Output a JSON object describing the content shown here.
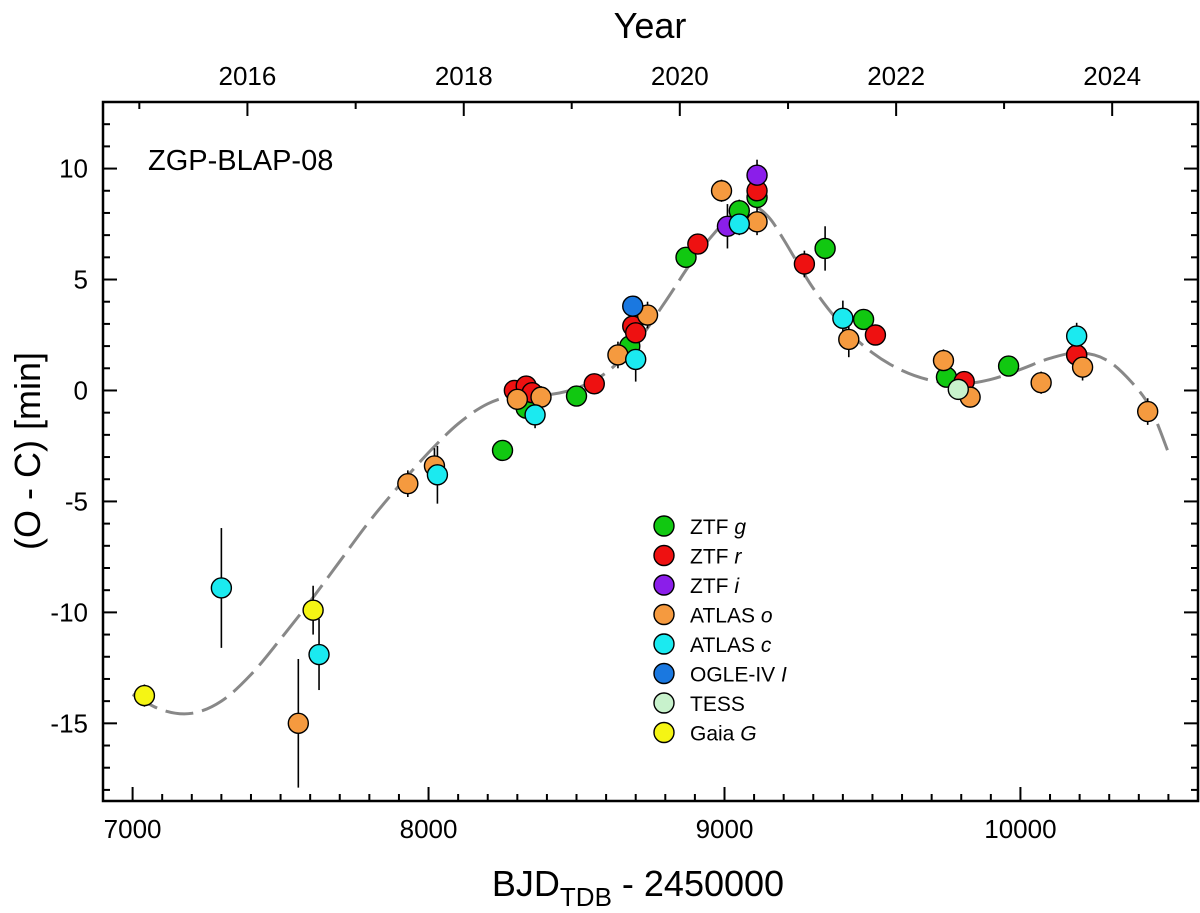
{
  "chart_data": {
    "type": "scatter",
    "annotation": "ZGP-BLAP-08",
    "xlabel": "BJD",
    "xlabel_sub": "TDB",
    "xlabel_suffix": " - 2450000",
    "ylabel": "(O - C) [min]",
    "top_axis_label": "Year",
    "xlim": [
      6900,
      10600
    ],
    "ylim": [
      -18.5,
      13
    ],
    "x_ticks": [
      7000,
      8000,
      9000,
      10000
    ],
    "y_ticks": [
      -15,
      -10,
      -5,
      0,
      5,
      10
    ],
    "year_ticks": [
      {
        "label": "2016",
        "x": 7388
      },
      {
        "label": "2018",
        "x": 8119
      },
      {
        "label": "2020",
        "x": 8849
      },
      {
        "label": "2022",
        "x": 9580
      },
      {
        "label": "2024",
        "x": 10310
      }
    ],
    "fit_curve": {
      "name": "fit",
      "color": "#888888",
      "points": [
        [
          7000,
          -13.7
        ],
        [
          7100,
          -14.4
        ],
        [
          7200,
          -14.55
        ],
        [
          7300,
          -14.0
        ],
        [
          7400,
          -12.8
        ],
        [
          7500,
          -11.2
        ],
        [
          7600,
          -9.5
        ],
        [
          7700,
          -7.7
        ],
        [
          7800,
          -5.9
        ],
        [
          7900,
          -4.3
        ],
        [
          8000,
          -2.8
        ],
        [
          8100,
          -1.5
        ],
        [
          8200,
          -0.6
        ],
        [
          8300,
          -0.2
        ],
        [
          8400,
          -0.2
        ],
        [
          8500,
          0.1
        ],
        [
          8600,
          0.8
        ],
        [
          8700,
          2.1
        ],
        [
          8800,
          4.0
        ],
        [
          8900,
          6.0
        ],
        [
          9000,
          7.6
        ],
        [
          9050,
          8.1
        ],
        [
          9100,
          8.3
        ],
        [
          9150,
          7.8
        ],
        [
          9200,
          6.8
        ],
        [
          9300,
          4.6
        ],
        [
          9400,
          2.9
        ],
        [
          9500,
          1.7
        ],
        [
          9600,
          0.9
        ],
        [
          9700,
          0.45
        ],
        [
          9800,
          0.3
        ],
        [
          9900,
          0.5
        ],
        [
          10000,
          0.95
        ],
        [
          10100,
          1.45
        ],
        [
          10200,
          1.7
        ],
        [
          10300,
          1.3
        ],
        [
          10400,
          0.0
        ],
        [
          10450,
          -1.1
        ],
        [
          10500,
          -2.8
        ]
      ]
    },
    "series": [
      {
        "name": "ZTF",
        "band": "g",
        "color": "#11c811",
        "points": [
          {
            "x": 8250,
            "y": -2.7,
            "err": 0.3
          },
          {
            "x": 8330,
            "y": -0.8,
            "err": 0.4
          },
          {
            "x": 8500,
            "y": -0.25,
            "err": 0.3
          },
          {
            "x": 8680,
            "y": 2.0,
            "err": 0.6
          },
          {
            "x": 8870,
            "y": 6.0,
            "err": 0.4
          },
          {
            "x": 9050,
            "y": 8.1,
            "err": 0.5
          },
          {
            "x": 9110,
            "y": 8.7,
            "err": 0.5
          },
          {
            "x": 9340,
            "y": 6.4,
            "err": 1.0
          },
          {
            "x": 9470,
            "y": 3.2,
            "err": 0.3
          },
          {
            "x": 9750,
            "y": 0.6,
            "err": 0.3
          },
          {
            "x": 9960,
            "y": 1.1,
            "err": 0.2
          },
          {
            "x": 10190,
            "y": 1.6,
            "err": 0.3
          }
        ]
      },
      {
        "name": "ZTF",
        "band": "r",
        "color": "#ee1111",
        "points": [
          {
            "x": 8290,
            "y": 0.0,
            "err": 0.3
          },
          {
            "x": 8330,
            "y": 0.2,
            "err": 0.4
          },
          {
            "x": 8350,
            "y": -0.1,
            "err": 0.4
          },
          {
            "x": 8560,
            "y": 0.3,
            "err": 0.3
          },
          {
            "x": 8690,
            "y": 2.9,
            "err": 0.5
          },
          {
            "x": 8700,
            "y": 2.6,
            "err": 0.5
          },
          {
            "x": 8910,
            "y": 6.6,
            "err": 0.3
          },
          {
            "x": 9110,
            "y": 9.0,
            "err": 0.5
          },
          {
            "x": 9270,
            "y": 5.7,
            "err": 0.6
          },
          {
            "x": 9510,
            "y": 2.5,
            "err": 0.3
          },
          {
            "x": 9810,
            "y": 0.4,
            "err": 0.3
          },
          {
            "x": 10190,
            "y": 1.6,
            "err": 0.4
          }
        ]
      },
      {
        "name": "ZTF",
        "band": "i",
        "color": "#8b1eea",
        "points": [
          {
            "x": 9010,
            "y": 7.4,
            "err": 1.0
          },
          {
            "x": 9110,
            "y": 9.7,
            "err": 0.7
          }
        ]
      },
      {
        "name": "ATLAS",
        "band": "o",
        "color": "#f59a3f",
        "points": [
          {
            "x": 7560,
            "y": -15.0,
            "err": 2.9
          },
          {
            "x": 7930,
            "y": -4.2,
            "err": 0.6
          },
          {
            "x": 8020,
            "y": -3.4,
            "err": 0.8
          },
          {
            "x": 8300,
            "y": -0.4,
            "err": 0.4
          },
          {
            "x": 8380,
            "y": -0.3,
            "err": 0.5
          },
          {
            "x": 8640,
            "y": 1.6,
            "err": 0.6
          },
          {
            "x": 8740,
            "y": 3.4,
            "err": 0.6
          },
          {
            "x": 8990,
            "y": 9.0,
            "err": 0.5
          },
          {
            "x": 9110,
            "y": 7.6,
            "err": 0.6
          },
          {
            "x": 9420,
            "y": 2.3,
            "err": 0.8
          },
          {
            "x": 9740,
            "y": 1.35,
            "err": 0.5
          },
          {
            "x": 9830,
            "y": -0.3,
            "err": 0.4
          },
          {
            "x": 10070,
            "y": 0.35,
            "err": 0.5
          },
          {
            "x": 10210,
            "y": 1.05,
            "err": 0.6
          },
          {
            "x": 10430,
            "y": -0.95,
            "err": 0.6
          }
        ]
      },
      {
        "name": "ATLAS",
        "band": "c",
        "color": "#1beaf0",
        "points": [
          {
            "x": 7300,
            "y": -8.9,
            "err": 2.7
          },
          {
            "x": 7630,
            "y": -11.9,
            "err": 1.6
          },
          {
            "x": 8030,
            "y": -3.8,
            "err": 1.3
          },
          {
            "x": 8360,
            "y": -1.1,
            "err": 0.6
          },
          {
            "x": 8700,
            "y": 1.4,
            "err": 1.0
          },
          {
            "x": 9050,
            "y": 7.5,
            "err": 0.5
          },
          {
            "x": 9400,
            "y": 3.25,
            "err": 0.8
          },
          {
            "x": 10190,
            "y": 2.45,
            "err": 0.6
          }
        ]
      },
      {
        "name": "OGLE-IV",
        "band": "I",
        "color": "#1a78e0",
        "points": [
          {
            "x": 8690,
            "y": 3.8,
            "err": 0.3
          }
        ]
      },
      {
        "name": "TESS",
        "band": "",
        "color": "#c8f2cc",
        "points": [
          {
            "x": 9790,
            "y": 0.05,
            "err": 0.4
          }
        ]
      },
      {
        "name": "Gaia",
        "band": "G",
        "color": "#f5f514",
        "points": [
          {
            "x": 7040,
            "y": -13.75,
            "err": 0.5
          },
          {
            "x": 7610,
            "y": -9.9,
            "err": 1.1
          }
        ]
      }
    ]
  }
}
